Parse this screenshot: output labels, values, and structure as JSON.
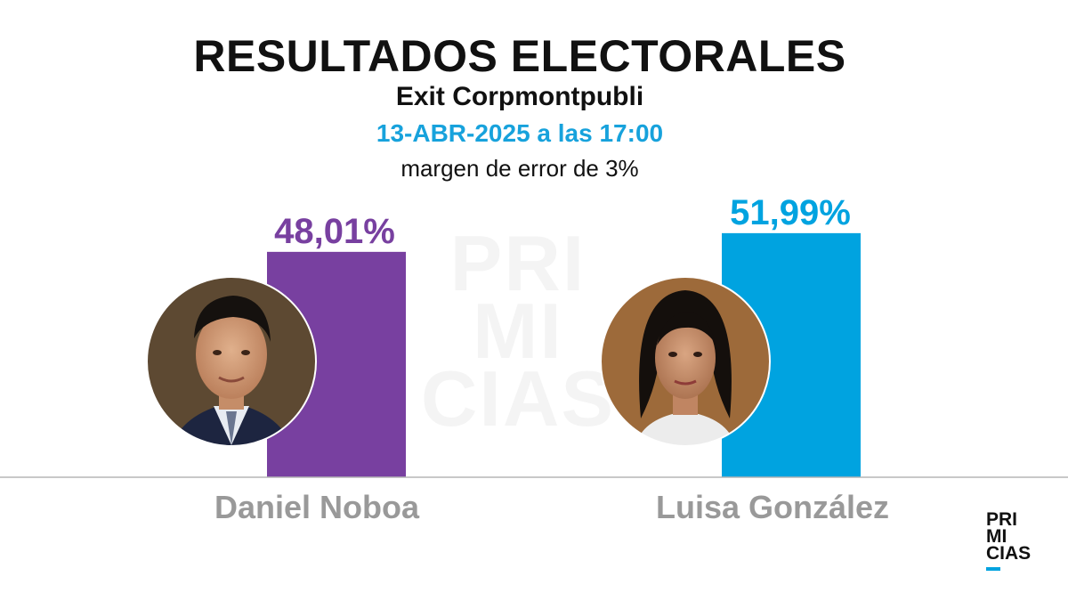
{
  "header": {
    "title": "RESULTADOS ELECTORALES",
    "subtitle": "Exit Corpmontpubli",
    "date": "13-ABR-2025 a las 17:00",
    "note": "margen de error de 3%"
  },
  "brand": {
    "lines": [
      "PRI",
      "MI",
      "CIAS"
    ],
    "accent": "#00a3e0"
  },
  "colors": {
    "date_text": "#17a2dc",
    "noboa": "#7840a0",
    "gonzalez": "#00a3e0",
    "name_text": "#999999",
    "baseline": "#b5b5b5"
  },
  "chart_data": {
    "type": "bar",
    "categories": [
      "Daniel Noboa",
      "Luisa González"
    ],
    "values": [
      48.01,
      51.99
    ],
    "labels": [
      "48,01%",
      "51,99%"
    ],
    "colors": [
      "#7840a0",
      "#00a3e0"
    ],
    "photos": [
      "avatar-daniel-noboa",
      "avatar-luisa-gonzalez"
    ],
    "ylim": [
      0,
      55
    ],
    "grid": false,
    "legend": "none"
  }
}
